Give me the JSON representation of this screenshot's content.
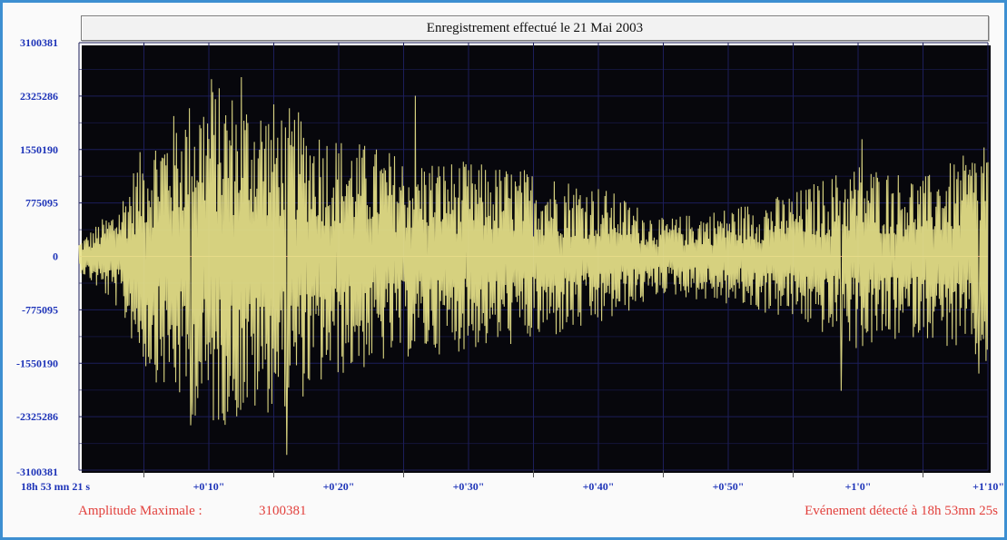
{
  "chart_data": {
    "type": "line",
    "title": "Enregistrement effectué le 21 Mai 2003",
    "xlabel": "",
    "ylabel": "",
    "ylim": [
      -3100381,
      3100381
    ],
    "xlim": [
      0,
      70
    ],
    "x_unit": "s since 18h 53 mn 21 s",
    "y_ticks": [
      "3100381",
      "2325286",
      "1550190",
      "775095",
      "0",
      "-775095",
      "-1550190",
      "-2325286",
      "-3100381"
    ],
    "x_ticks": [
      "18h 53 mn 21 s",
      "+0'10\"",
      "+0'20\"",
      "+0'30\"",
      "+0'40\"",
      "+0'50\"",
      "+1'0\"",
      "+1'10\""
    ],
    "grid": true,
    "series": [
      {
        "color": "#e8e38a",
        "envelope": [
          {
            "t": 0,
            "amp": 200000
          },
          {
            "t": 3,
            "amp": 700000
          },
          {
            "t": 5,
            "amp": 1500000
          },
          {
            "t": 7,
            "amp": 1850000
          },
          {
            "t": 10,
            "amp": 2300000
          },
          {
            "t": 12,
            "amp": 2200000
          },
          {
            "t": 16,
            "amp": 2000000
          },
          {
            "t": 20,
            "amp": 1600000
          },
          {
            "t": 25,
            "amp": 1350000
          },
          {
            "t": 30,
            "amp": 1250000
          },
          {
            "t": 35,
            "amp": 1150000
          },
          {
            "t": 40,
            "amp": 950000
          },
          {
            "t": 45,
            "amp": 500000
          },
          {
            "t": 50,
            "amp": 650000
          },
          {
            "t": 55,
            "amp": 850000
          },
          {
            "t": 60,
            "amp": 1250000
          },
          {
            "t": 65,
            "amp": 1050000
          },
          {
            "t": 70,
            "amp": 1500000
          }
        ],
        "peaks": [
          {
            "t": 10.2,
            "y": 2570000
          },
          {
            "t": 12.5,
            "y": 2600000
          },
          {
            "t": 16.0,
            "y": -2880000
          },
          {
            "t": 8.6,
            "y": -2450000
          },
          {
            "t": 25.9,
            "y": 2330000
          },
          {
            "t": 60.3,
            "y": 1700000
          },
          {
            "t": 58.7,
            "y": -1950000
          },
          {
            "t": 69.3,
            "y": -1700000
          },
          {
            "t": 69.7,
            "y": 1580000
          }
        ]
      }
    ]
  },
  "footer": {
    "amplitude_label": "Amplitude Maximale :",
    "amplitude_value": "3100381",
    "event_text": "Evénement détecté à 18h 53mn 25s"
  },
  "colors": {
    "frame": "#3d8fd1",
    "plot_background": "#07070c",
    "grid": "#1c1e5a",
    "zero_line": "#d87a72",
    "signal": "#e8e38a",
    "tick_text": "#1d33b8",
    "footer_text": "#e2403c"
  }
}
